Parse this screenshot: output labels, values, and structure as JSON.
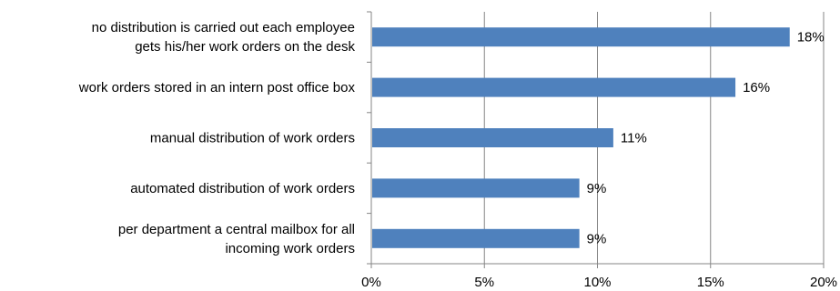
{
  "chart_data": {
    "type": "bar",
    "orientation": "horizontal",
    "categories": [
      [
        "no distribution is carried out each employee",
        "gets his/her work orders on the desk"
      ],
      [
        "work orders stored in an intern post office box"
      ],
      [
        "manual distribution of work orders"
      ],
      [
        "automated distribution of work orders"
      ],
      [
        "per department a central mailbox for all",
        "incoming work orders"
      ]
    ],
    "values": [
      18.5,
      16.1,
      10.7,
      9.2,
      9.2
    ],
    "value_labels": [
      "18%",
      "16%",
      "11%",
      "9%",
      "9%"
    ],
    "xlim": [
      0,
      20
    ],
    "x_ticks": [
      0,
      5,
      10,
      15,
      20
    ],
    "x_tick_labels": [
      "0%",
      "5%",
      "10%",
      "15%",
      "20%"
    ],
    "grid": "vertical",
    "legend": "none",
    "title": "",
    "xlabel": "",
    "ylabel": "",
    "colors": {
      "bar": "#4F81BD",
      "grid": "#868686",
      "axis": "#868686"
    }
  }
}
